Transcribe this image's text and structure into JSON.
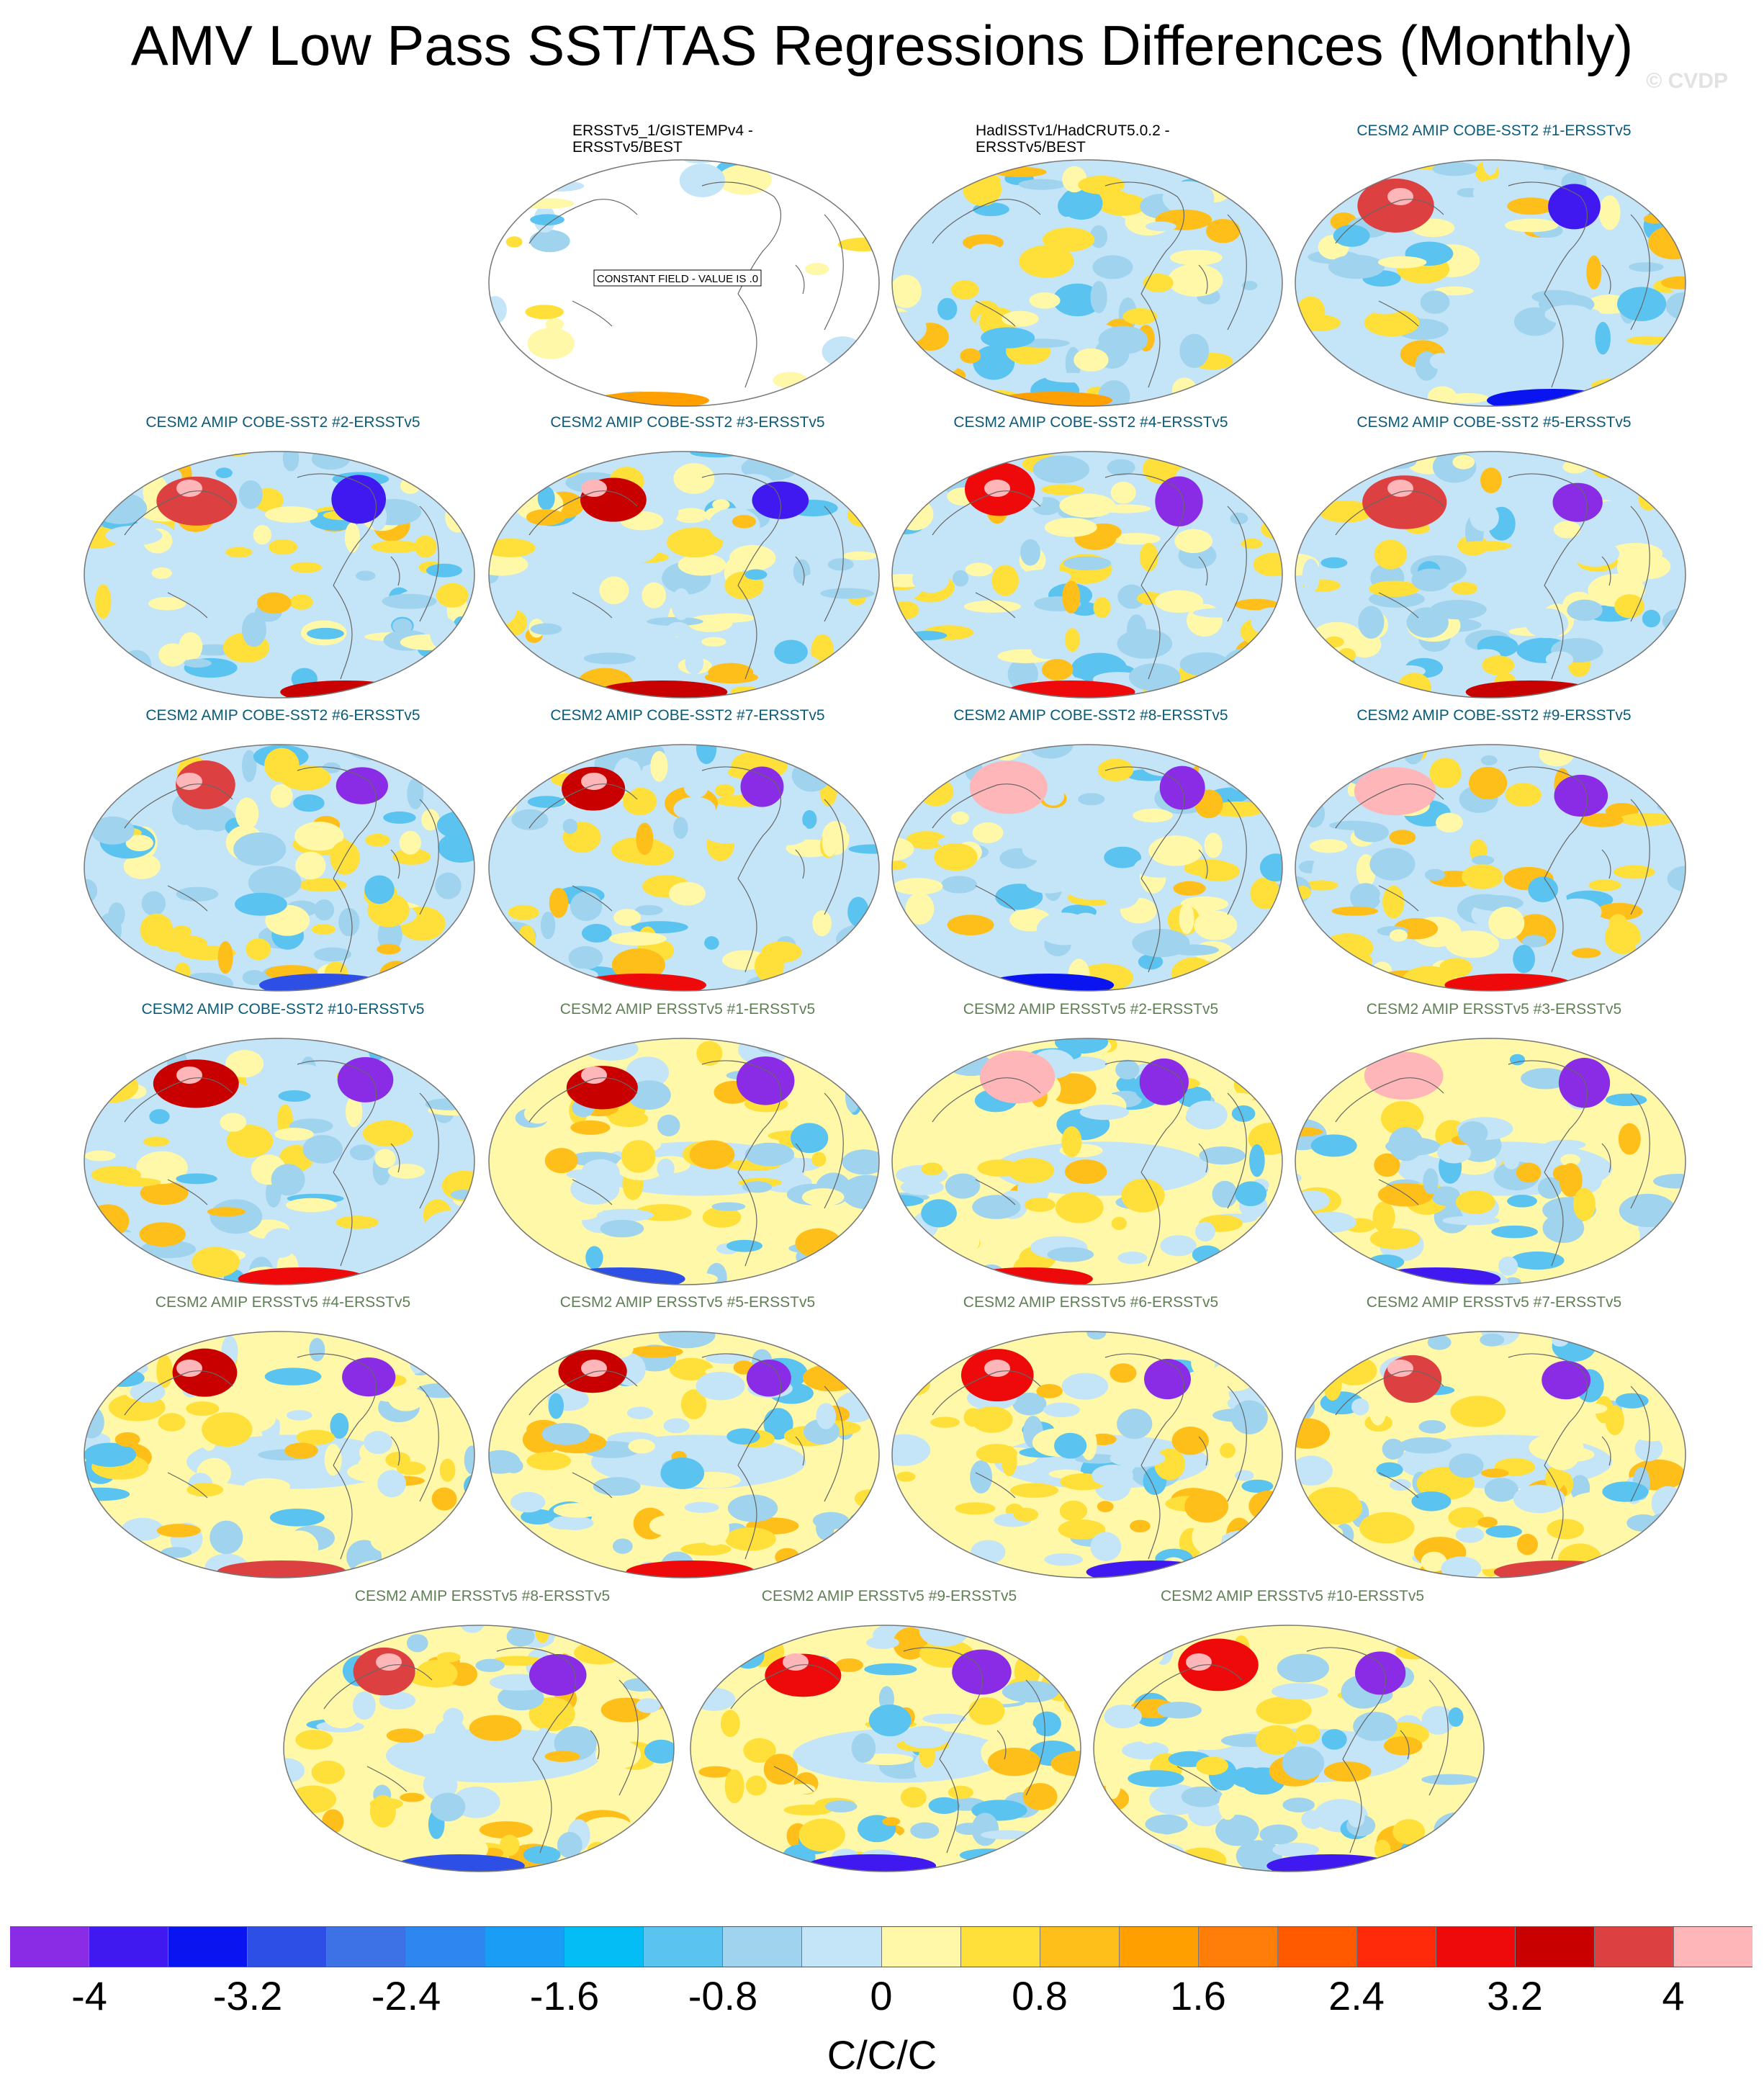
{
  "title": "AMV Low Pass SST/TAS Regressions Differences (Monthly)",
  "watermark": "© CVDP",
  "panels": [
    {
      "label": "ERSSTv5_1/GISTEMPv4 -\nERSSTv5/BEST",
      "group": "obs",
      "note": "CONSTANT FIELD - VALUE IS .0",
      "seed": 1,
      "ocean_blank": true
    },
    {
      "label": "HadISSTv1/HadCRUT5.0.2 -\nERSSTv5/BEST",
      "group": "obs",
      "seed": 2
    },
    {
      "label": "CESM2 AMIP COBE-SST2 #1-ERSSTv5",
      "group": "cobe",
      "seed": 3
    },
    {
      "label": "CESM2 AMIP COBE-SST2 #2-ERSSTv5",
      "group": "cobe",
      "seed": 4
    },
    {
      "label": "CESM2 AMIP COBE-SST2 #3-ERSSTv5",
      "group": "cobe",
      "seed": 5
    },
    {
      "label": "CESM2 AMIP COBE-SST2 #4-ERSSTv5",
      "group": "cobe",
      "seed": 6
    },
    {
      "label": "CESM2 AMIP COBE-SST2 #5-ERSSTv5",
      "group": "cobe",
      "seed": 7
    },
    {
      "label": "CESM2 AMIP COBE-SST2 #6-ERSSTv5",
      "group": "cobe",
      "seed": 8
    },
    {
      "label": "CESM2 AMIP COBE-SST2 #7-ERSSTv5",
      "group": "cobe",
      "seed": 9
    },
    {
      "label": "CESM2 AMIP COBE-SST2 #8-ERSSTv5",
      "group": "cobe",
      "seed": 10
    },
    {
      "label": "CESM2 AMIP COBE-SST2 #9-ERSSTv5",
      "group": "cobe",
      "seed": 11
    },
    {
      "label": "CESM2 AMIP COBE-SST2 #10-ERSSTv5",
      "group": "cobe",
      "seed": 12
    },
    {
      "label": "CESM2 AMIP ERSSTv5 #1-ERSSTv5",
      "group": "ersst",
      "seed": 13
    },
    {
      "label": "CESM2 AMIP ERSSTv5 #2-ERSSTv5",
      "group": "ersst",
      "seed": 14
    },
    {
      "label": "CESM2 AMIP ERSSTv5 #3-ERSSTv5",
      "group": "ersst",
      "seed": 15
    },
    {
      "label": "CESM2 AMIP ERSSTv5 #4-ERSSTv5",
      "group": "ersst",
      "seed": 16
    },
    {
      "label": "CESM2 AMIP ERSSTv5 #5-ERSSTv5",
      "group": "ersst",
      "seed": 17
    },
    {
      "label": "CESM2 AMIP ERSSTv5 #6-ERSSTv5",
      "group": "ersst",
      "seed": 18
    },
    {
      "label": "CESM2 AMIP ERSSTv5 #7-ERSSTv5",
      "group": "ersst",
      "seed": 19
    },
    {
      "label": "CESM2 AMIP ERSSTv5 #8-ERSSTv5",
      "group": "ersst",
      "seed": 20
    },
    {
      "label": "CESM2 AMIP ERSSTv5 #9-ERSSTv5",
      "group": "ersst",
      "seed": 21
    },
    {
      "label": "CESM2 AMIP ERSSTv5 #10-ERSSTv5",
      "group": "ersst",
      "seed": 22
    }
  ],
  "colorbar": {
    "colors": [
      "#8a2be6",
      "#4019f0",
      "#0a14f0",
      "#2e4fe6",
      "#3c72e6",
      "#2e87f0",
      "#1a9ef5",
      "#05bdf5",
      "#5ac3f0",
      "#9fd3ee",
      "#c4e4f7",
      "#fff8a8",
      "#ffdf3a",
      "#ffbf1a",
      "#ffa000",
      "#ff7e0a",
      "#ff5a00",
      "#ff2a0a",
      "#ee0a0a",
      "#c80000",
      "#dd4040",
      "#ffb6b8"
    ],
    "ticks": [
      "-4",
      "-3.2",
      "-2.4",
      "-1.6",
      "-0.8",
      "0",
      "0.8",
      "1.6",
      "2.4",
      "3.2",
      "4"
    ],
    "units": "C/C/C"
  },
  "chart_data": {
    "type": "heatmap",
    "title": "AMV Low Pass SST/TAS Regressions Differences (Monthly)",
    "colorbar_label": "C/C/C",
    "value_range": [
      -4,
      4
    ],
    "contour_interval": 0.4,
    "colorbar_ticks": [
      -4,
      -3.2,
      -2.4,
      -1.6,
      -0.8,
      0,
      0.8,
      1.6,
      2.4,
      3.2,
      4
    ],
    "panel_count": 22,
    "note_first_panel": "CONSTANT FIELD - VALUE IS .0"
  }
}
